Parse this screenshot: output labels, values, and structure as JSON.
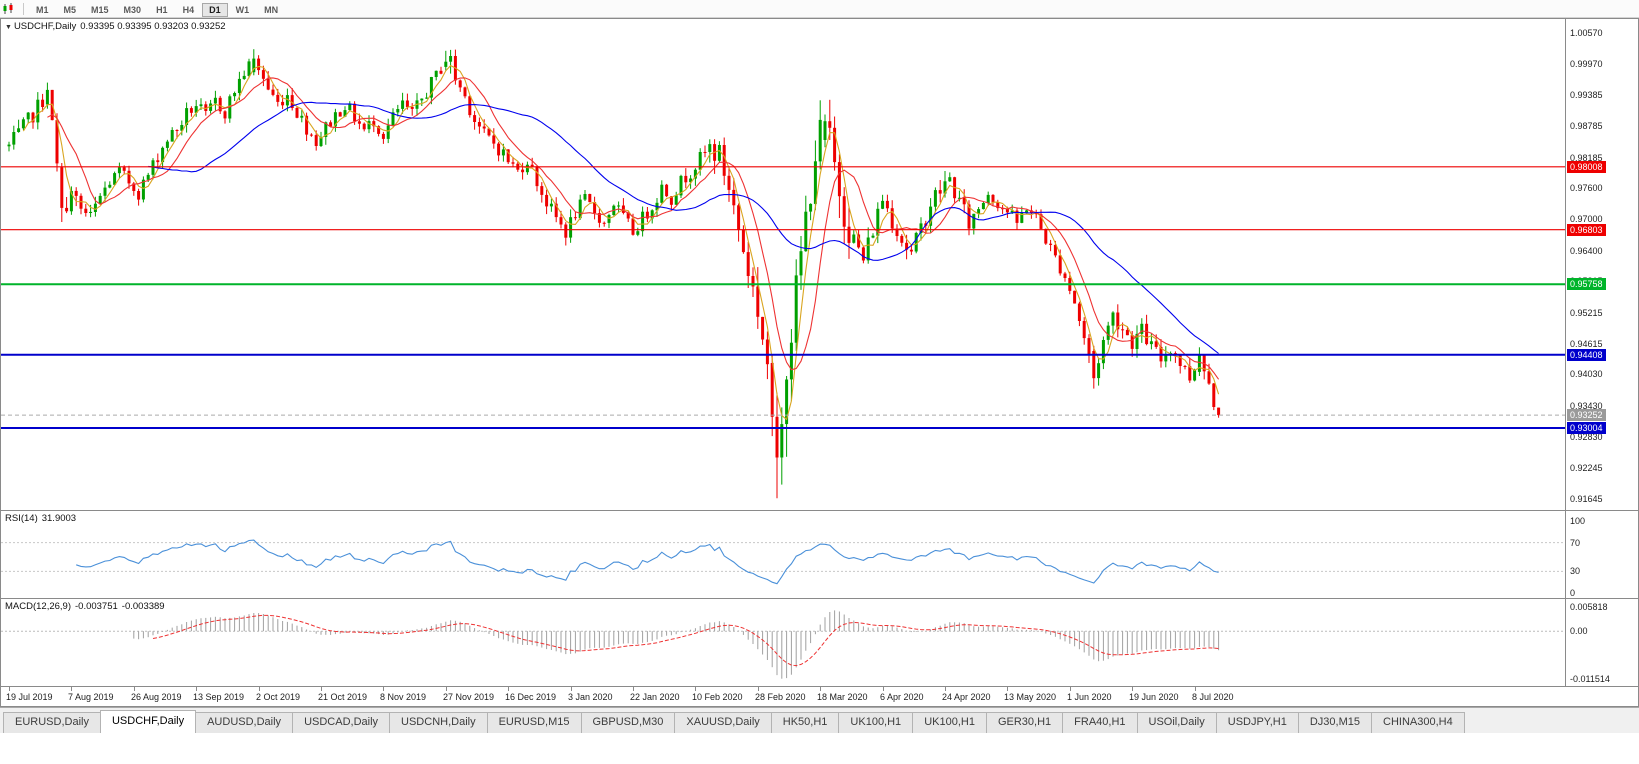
{
  "toolbar": {
    "timeframes": [
      "M1",
      "M5",
      "M15",
      "M30",
      "H1",
      "H4",
      "D1",
      "W1",
      "MN"
    ],
    "active_timeframe": "D1"
  },
  "chart": {
    "symbol_period": "USDCHF,Daily",
    "ohlc_text": "0.93395 0.93395 0.93203 0.93252"
  },
  "tabs": {
    "items": [
      "EURUSD,Daily",
      "USDCHF,Daily",
      "AUDUSD,Daily",
      "USDCAD,Daily",
      "USDCNH,Daily",
      "EURUSD,M15",
      "GBPUSD,M30",
      "XAUUSD,Daily",
      "HK50,H1",
      "UK100,H1",
      "UK100,H1",
      "GER30,H1",
      "FRA40,H1",
      "USOil,Daily",
      "USDJPY,H1",
      "DJ30,M15",
      "CHINA300,H4"
    ],
    "active_index": 1
  },
  "chart_data": {
    "type": "candlestick",
    "symbol": "USDCHF",
    "period": "Daily",
    "ohlc_current": {
      "open": "0.93395",
      "high": "0.93395",
      "low": "0.93203",
      "close": "0.93252"
    },
    "n_candles": 253,
    "candles_per_date_label": 13,
    "seed": 7,
    "dates": [
      "19 Jul 2019",
      "7 Aug 2019",
      "26 Aug 2019",
      "13 Sep 2019",
      "2 Oct 2019",
      "21 Oct 2019",
      "8 Nov 2019",
      "27 Nov 2019",
      "16 Dec 2019",
      "3 Jan 2020",
      "22 Jan 2020",
      "10 Feb 2020",
      "28 Feb 2020",
      "18 Mar 2020",
      "6 Apr 2020",
      "24 Apr 2020",
      "13 May 2020",
      "1 Jun 2020",
      "19 Jun 2020",
      "8 Jul 2020"
    ],
    "price_axis": {
      "p_top": 1.0057,
      "p_bottom": 0.91645,
      "ticks": [
        "1.00570",
        "0.99970",
        "0.99385",
        "0.98785",
        "0.98185",
        "0.97600",
        "0.97000",
        "0.96400",
        "0.95815",
        "0.95215",
        "0.94615",
        "0.94030",
        "0.93430",
        "0.92830",
        "0.92245",
        "0.91645"
      ]
    },
    "hlines": [
      {
        "price": 0.98008,
        "label": "0.98008",
        "color": "#ee0000",
        "width": 1.2
      },
      {
        "price": 0.96803,
        "label": "0.96803",
        "color": "#ee0000",
        "width": 1.2
      },
      {
        "price": 0.95758,
        "label": "0.95758",
        "color": "#00b42a",
        "width": 2
      },
      {
        "price": 0.94408,
        "label": "0.94408",
        "color": "#0000cc",
        "width": 2
      },
      {
        "price": 0.93004,
        "label": "0.93004",
        "color": "#0000cc",
        "width": 2
      }
    ],
    "bid": {
      "price": 0.93252,
      "label": "0.93252"
    },
    "close_waypoints": [
      [
        0,
        0.984
      ],
      [
        2,
        0.9862
      ],
      [
        4,
        0.9888
      ],
      [
        6,
        0.9915
      ],
      [
        8,
        0.9945
      ],
      [
        9,
        0.988
      ],
      [
        10,
        0.98
      ],
      [
        11,
        0.9722
      ],
      [
        13,
        0.9748
      ],
      [
        15,
        0.9718
      ],
      [
        17,
        0.97
      ],
      [
        19,
        0.9742
      ],
      [
        21,
        0.9772
      ],
      [
        23,
        0.979
      ],
      [
        25,
        0.9772
      ],
      [
        27,
        0.9752
      ],
      [
        29,
        0.9785
      ],
      [
        31,
        0.9822
      ],
      [
        33,
        0.9855
      ],
      [
        35,
        0.9872
      ],
      [
        37,
        0.9902
      ],
      [
        39,
        0.992
      ],
      [
        41,
        0.9896
      ],
      [
        43,
        0.9926
      ],
      [
        45,
        0.9906
      ],
      [
        47,
        0.9948
      ],
      [
        49,
        0.9982
      ],
      [
        51,
        1.0005
      ],
      [
        52,
        0.999
      ],
      [
        54,
        0.995
      ],
      [
        56,
        0.9922
      ],
      [
        58,
        0.994
      ],
      [
        60,
        0.9906
      ],
      [
        62,
        0.9876
      ],
      [
        64,
        0.985
      ],
      [
        66,
        0.9876
      ],
      [
        68,
        0.99
      ],
      [
        70,
        0.992
      ],
      [
        72,
        0.9896
      ],
      [
        74,
        0.987
      ],
      [
        76,
        0.989
      ],
      [
        78,
        0.9862
      ],
      [
        80,
        0.9895
      ],
      [
        82,
        0.992
      ],
      [
        84,
        0.99
      ],
      [
        86,
        0.993
      ],
      [
        88,
        0.996
      ],
      [
        90,
        0.999
      ],
      [
        92,
        1.0005
      ],
      [
        93,
        0.997
      ],
      [
        95,
        0.9935
      ],
      [
        97,
        0.9892
      ],
      [
        99,
        0.9862
      ],
      [
        101,
        0.9846
      ],
      [
        103,
        0.9826
      ],
      [
        104,
        0.9812
      ],
      [
        106,
        0.9792
      ],
      [
        108,
        0.9816
      ],
      [
        110,
        0.9772
      ],
      [
        112,
        0.9732
      ],
      [
        114,
        0.9702
      ],
      [
        116,
        0.9676
      ],
      [
        118,
        0.9712
      ],
      [
        120,
        0.9736
      ],
      [
        122,
        0.9716
      ],
      [
        124,
        0.9692
      ],
      [
        126,
        0.9732
      ],
      [
        128,
        0.9702
      ],
      [
        130,
        0.9676
      ],
      [
        132,
        0.9702
      ],
      [
        134,
        0.9726
      ],
      [
        136,
        0.9762
      ],
      [
        138,
        0.9742
      ],
      [
        140,
        0.9772
      ],
      [
        142,
        0.9792
      ],
      [
        144,
        0.9816
      ],
      [
        146,
        0.9836
      ],
      [
        148,
        0.9822
      ],
      [
        150,
        0.9762
      ],
      [
        152,
        0.9682
      ],
      [
        154,
        0.9602
      ],
      [
        156,
        0.9532
      ],
      [
        158,
        0.9422
      ],
      [
        159,
        0.933
      ],
      [
        160,
        0.925
      ],
      [
        161,
        0.9305
      ],
      [
        162,
        0.942
      ],
      [
        164,
        0.956
      ],
      [
        166,
        0.97
      ],
      [
        168,
        0.983
      ],
      [
        170,
        0.9886
      ],
      [
        172,
        0.98
      ],
      [
        174,
        0.9722
      ],
      [
        176,
        0.9662
      ],
      [
        178,
        0.9622
      ],
      [
        180,
        0.9682
      ],
      [
        182,
        0.9742
      ],
      [
        184,
        0.9702
      ],
      [
        186,
        0.9662
      ],
      [
        188,
        0.9632
      ],
      [
        190,
        0.9682
      ],
      [
        192,
        0.9732
      ],
      [
        194,
        0.9756
      ],
      [
        196,
        0.9776
      ],
      [
        198,
        0.9732
      ],
      [
        200,
        0.9692
      ],
      [
        202,
        0.9722
      ],
      [
        204,
        0.9752
      ],
      [
        206,
        0.9732
      ],
      [
        208,
        0.9716
      ],
      [
        210,
        0.9692
      ],
      [
        212,
        0.9726
      ],
      [
        214,
        0.9702
      ],
      [
        216,
        0.9662
      ],
      [
        218,
        0.9626
      ],
      [
        220,
        0.9592
      ],
      [
        222,
        0.9542
      ],
      [
        224,
        0.9472
      ],
      [
        226,
        0.9398
      ],
      [
        228,
        0.9468
      ],
      [
        230,
        0.9518
      ],
      [
        232,
        0.9492
      ],
      [
        234,
        0.9466
      ],
      [
        236,
        0.9486
      ],
      [
        238,
        0.9456
      ],
      [
        240,
        0.9432
      ],
      [
        242,
        0.9456
      ],
      [
        244,
        0.9426
      ],
      [
        246,
        0.9398
      ],
      [
        248,
        0.944
      ],
      [
        250,
        0.9386
      ],
      [
        252,
        0.9325
      ]
    ],
    "volatility_segments": [
      [
        0,
        10,
        1.2
      ],
      [
        11,
        20,
        1.5
      ],
      [
        21,
        145,
        1.0
      ],
      [
        146,
        155,
        1.7
      ],
      [
        156,
        175,
        2.8
      ],
      [
        176,
        200,
        1.4
      ],
      [
        201,
        220,
        1.0
      ],
      [
        221,
        252,
        1.2
      ]
    ],
    "candle_overrides": {
      "8": [
        0.992,
        0.9962,
        0.9912,
        0.9948
      ],
      "11": [
        0.98,
        0.9808,
        0.9695,
        0.9722
      ],
      "51": [
        0.9982,
        1.0026,
        0.9976,
        1.0008
      ],
      "91": [
        0.9992,
        1.0023,
        0.9985,
        1.0002
      ],
      "159": [
        0.9425,
        0.944,
        0.9285,
        0.9322
      ],
      "160": [
        0.9322,
        0.9368,
        0.9166,
        0.9244
      ],
      "161": [
        0.9244,
        0.934,
        0.9192,
        0.9308
      ],
      "170": [
        0.9852,
        0.9901,
        0.9838,
        0.9888
      ],
      "226": [
        0.9448,
        0.9458,
        0.9376,
        0.9396
      ],
      "248": [
        0.9408,
        0.9455,
        0.94,
        0.9442
      ],
      "252": [
        0.93395,
        0.93395,
        0.93203,
        0.93252
      ]
    },
    "moving_averages": [
      {
        "period": 4,
        "color_key": "ma_fast"
      },
      {
        "period": 9,
        "color_key": "ma_mid"
      },
      {
        "period": 30,
        "color_key": "ma_slow"
      }
    ],
    "rsi": {
      "label": "RSI(14)",
      "period": 14,
      "current": "31.9003",
      "ticks": [
        100,
        70,
        30,
        0
      ],
      "levels": [
        70,
        30
      ]
    },
    "macd": {
      "label": "MACD(12,26,9)",
      "fast": 12,
      "slow": 26,
      "signal": 9,
      "current_main": "-0.003751",
      "current_signal": "-0.003389",
      "axis_max": 0.005818,
      "axis_min": -0.011514,
      "axis_labels": [
        "0.005818",
        "0.00",
        "-0.011514"
      ]
    },
    "colors": {
      "bull": "#00a000",
      "bear": "#ee0000",
      "ma_fast": "#d9a520",
      "ma_mid": "#ee3333",
      "ma_slow": "#0000ee",
      "rsi": "#4a90d9",
      "macd_hist": "#a0a0a0",
      "macd_signal": "#ee3333",
      "bid_line": "#aaaaaa"
    }
  }
}
